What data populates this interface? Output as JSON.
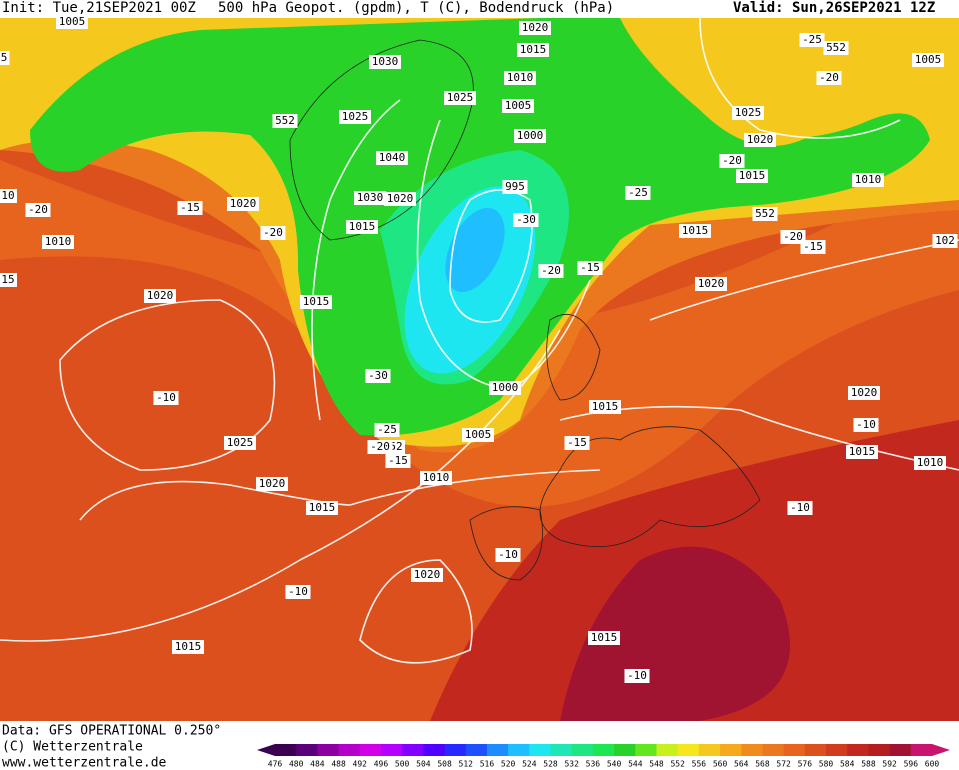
{
  "header": {
    "init": "Init: Tue,21SEP2021 00Z",
    "title": "500 hPa Geopot. (gpdm), T (C), Bodendruck (hPa)",
    "valid": "Valid: Sun,26SEP2021 12Z"
  },
  "map_labels": [
    "1005",
    "1020",
    "1015",
    "1030",
    "1010",
    "1025",
    "1005",
    "1025",
    "552",
    "1000",
    "1040",
    "995",
    "1030",
    "1020",
    "-20",
    "-15",
    "1020",
    "-20",
    "1015",
    "-30",
    "1010",
    "-20",
    "-15",
    "1020",
    "1015",
    "-30",
    "1000",
    "-10",
    "-25",
    "52",
    "-20",
    "-15",
    "1005",
    "1025",
    "1015",
    "-15",
    "1010",
    "1020",
    "1015",
    "-10",
    "1020",
    "-10",
    "1015",
    "1015",
    "-10",
    "1025",
    "1020",
    "1015",
    "1010",
    "552",
    "1015",
    "-20",
    "-15",
    "1020",
    "1020",
    "-10",
    "1015",
    "1010",
    "-10",
    "1005",
    "-25",
    "552",
    "-20",
    "-25",
    "-20",
    "102",
    "10",
    "15",
    "5"
  ],
  "footer": {
    "data": "Data: GFS OPERATIONAL 0.250°",
    "copyright": "(C) Wetterzentrale",
    "url": "www.wetterzentrale.de"
  },
  "colorbar": {
    "ticks": [
      476,
      480,
      484,
      488,
      492,
      496,
      500,
      504,
      508,
      512,
      516,
      520,
      524,
      528,
      532,
      536,
      540,
      544,
      548,
      552,
      556,
      560,
      564,
      568,
      572,
      576,
      580,
      584,
      588,
      592,
      596,
      600
    ],
    "colors": [
      "#3c0050",
      "#5a0078",
      "#8c00a0",
      "#b400c8",
      "#d200e6",
      "#b400ff",
      "#8200ff",
      "#5000ff",
      "#2828ff",
      "#1e50ff",
      "#1e8cff",
      "#1ebeff",
      "#1ee6f0",
      "#1ee6b4",
      "#1ee682",
      "#1ee650",
      "#28d228",
      "#64e61e",
      "#c8f01e",
      "#f5e61e",
      "#f5c81e",
      "#f5aa1e",
      "#f08c1e",
      "#eb781e",
      "#e6641e",
      "#dc501e",
      "#d23c1e",
      "#c3281e",
      "#b41e1e",
      "#a01432",
      "#c8146e"
    ]
  }
}
